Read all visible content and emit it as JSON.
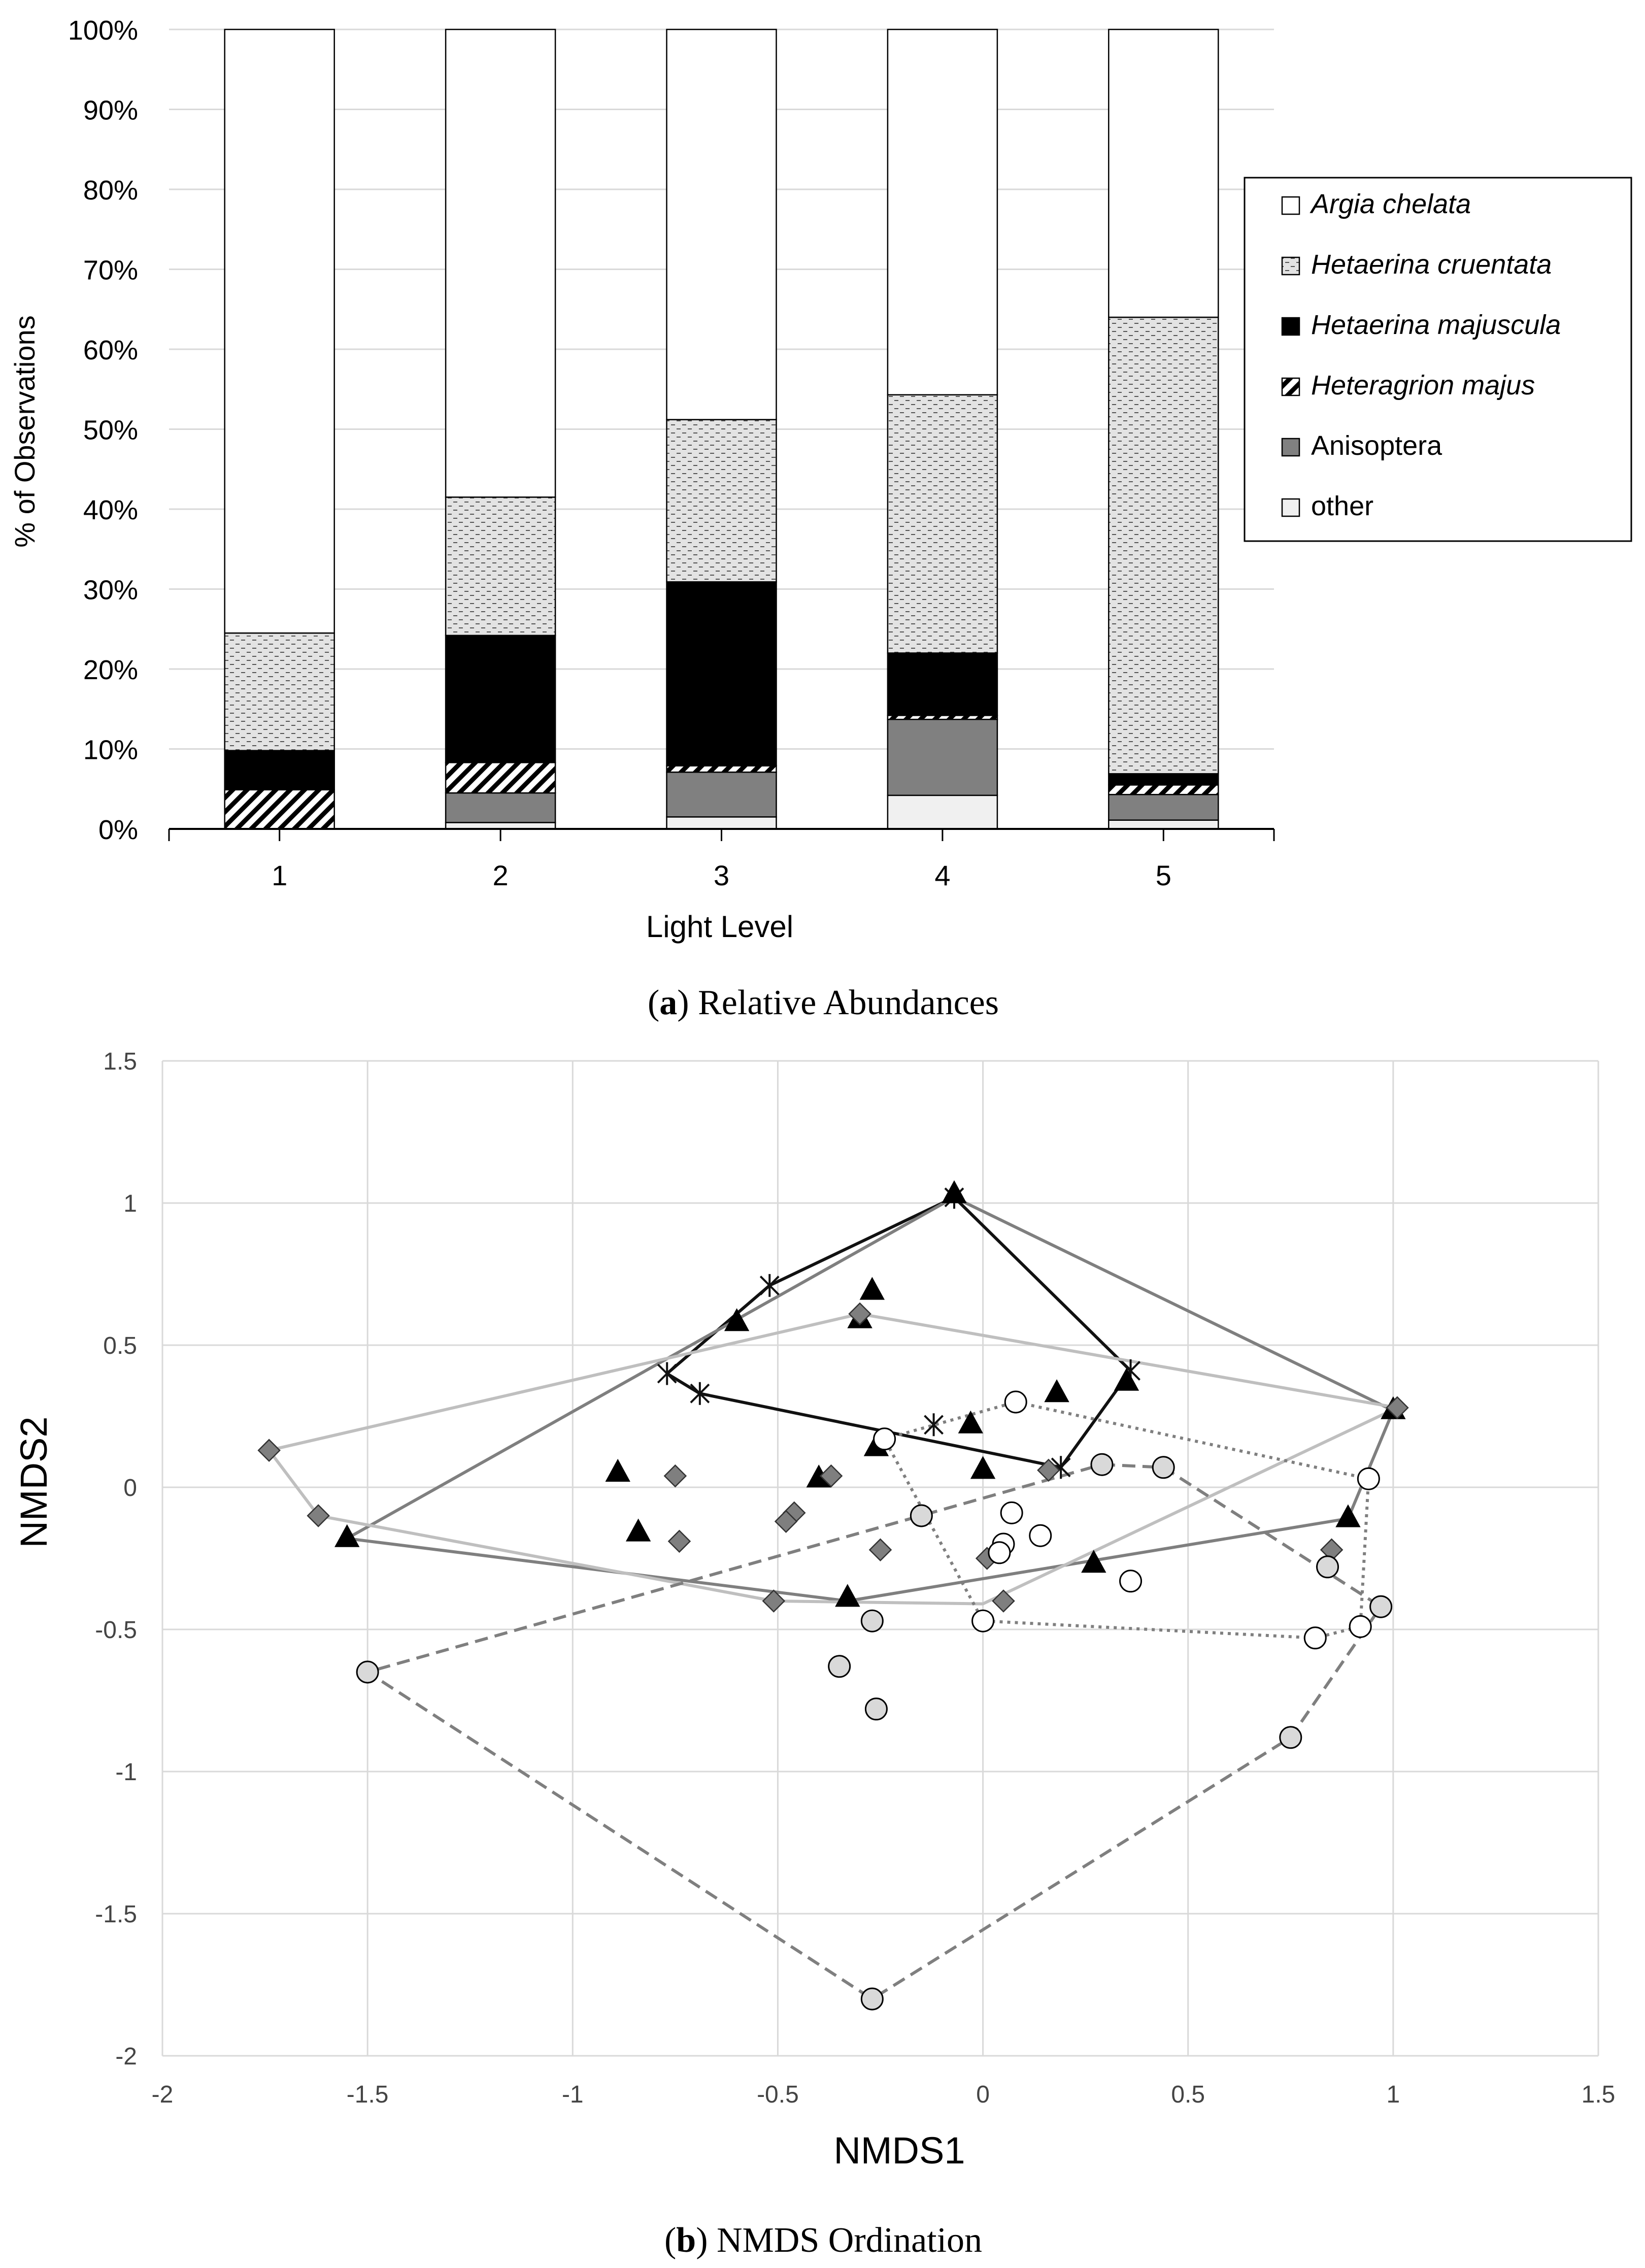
{
  "panel_a": {
    "caption_letter": "a",
    "caption_text": "Relative Abundances"
  },
  "panel_b": {
    "caption_letter": "b",
    "caption_text": "NMDS Ordination"
  },
  "chart_data": [
    {
      "type": "bar",
      "stacked": true,
      "percent": true,
      "xlabel": "Light Level",
      "ylabel": "% of Observations",
      "ylim": [
        0,
        100
      ],
      "yticks": [
        "0%",
        "10%",
        "20%",
        "30%",
        "40%",
        "50%",
        "60%",
        "70%",
        "80%",
        "90%",
        "100%"
      ],
      "categories": [
        "1",
        "2",
        "3",
        "4",
        "5"
      ],
      "grid": true,
      "legend_position": "right",
      "series": [
        {
          "name": "other",
          "pattern": "light-gray",
          "values": [
            0,
            0.8,
            1.5,
            4.2,
            1.1
          ]
        },
        {
          "name": "Anisoptera",
          "pattern": "gray",
          "values": [
            0,
            3.7,
            5.6,
            9.5,
            3.2
          ]
        },
        {
          "name": "Heteragrion majus",
          "pattern": "diagonal-hatch",
          "values": [
            4.9,
            3.8,
            0.8,
            0.5,
            1.2
          ]
        },
        {
          "name": "Hetaerina majuscula",
          "pattern": "black",
          "values": [
            4.9,
            15.9,
            23.0,
            7.8,
            1.4
          ]
        },
        {
          "name": "Hetaerina cruentata",
          "pattern": "dashed-stipple",
          "values": [
            14.7,
            17.3,
            20.3,
            32.3,
            57.1
          ]
        },
        {
          "name": "Argia chelata",
          "pattern": "white",
          "values": [
            75.5,
            58.5,
            48.8,
            45.7,
            36.0
          ]
        }
      ],
      "legend_order": [
        "Argia chelata",
        "Hetaerina cruentata",
        "Hetaerina majuscula",
        "Heteragrion majus",
        "Anisoptera",
        "other"
      ]
    },
    {
      "type": "scatter",
      "xlabel": "NMDS1",
      "ylabel": "NMDS2",
      "xlim": [
        -2,
        1.5
      ],
      "ylim": [
        -2,
        1.5
      ],
      "xticks": [
        "-2",
        "-1.5",
        "-1",
        "-0.5",
        "0",
        "0.5",
        "1",
        "1.5"
      ],
      "yticks": [
        "1.5",
        "1",
        "0.5",
        "0",
        "-0.5",
        "-1",
        "-1.5",
        "-2"
      ],
      "grid": true,
      "groups": [
        {
          "marker": "star",
          "color": "#111111",
          "hull_color": "#111111",
          "hull_style": "solid",
          "points": [
            [
              -0.07,
              1.02
            ],
            [
              -0.52,
              0.71
            ],
            [
              -0.77,
              0.4
            ],
            [
              -0.69,
              0.33
            ],
            [
              -0.12,
              0.22
            ],
            [
              0.36,
              0.41
            ],
            [
              0.19,
              0.07
            ]
          ],
          "hull": [
            [
              -0.07,
              1.02
            ],
            [
              0.36,
              0.41
            ],
            [
              0.19,
              0.07
            ],
            [
              -0.69,
              0.33
            ],
            [
              -0.77,
              0.4
            ],
            [
              -0.52,
              0.71
            ],
            [
              -0.07,
              1.02
            ]
          ]
        },
        {
          "marker": "triangle",
          "color": "#000000",
          "hull_color": "#7f7f7f",
          "hull_style": "solid",
          "points": [
            [
              -0.07,
              1.03
            ],
            [
              -0.27,
              0.69
            ],
            [
              -0.6,
              0.58
            ],
            [
              -0.3,
              0.59
            ],
            [
              0.35,
              0.37
            ],
            [
              0.18,
              0.33
            ],
            [
              -0.03,
              0.22
            ],
            [
              -0.89,
              0.05
            ],
            [
              -0.26,
              0.14
            ],
            [
              -0.4,
              0.03
            ],
            [
              0.0,
              0.06
            ],
            [
              -0.84,
              -0.16
            ],
            [
              -1.55,
              -0.18
            ],
            [
              0.27,
              -0.27
            ],
            [
              -0.33,
              -0.39
            ],
            [
              0.89,
              -0.11
            ],
            [
              1.0,
              0.27
            ]
          ],
          "hull": [
            [
              -0.07,
              1.02
            ],
            [
              1.0,
              0.27
            ],
            [
              0.89,
              -0.11
            ],
            [
              -0.33,
              -0.4
            ],
            [
              -1.55,
              -0.18
            ],
            [
              -0.07,
              1.02
            ]
          ]
        },
        {
          "marker": "diamond",
          "color": "#7f7f7f",
          "hull_color": "#bfbfbf",
          "hull_style": "solid",
          "points": [
            [
              -1.74,
              0.13
            ],
            [
              -1.62,
              -0.1
            ],
            [
              -0.3,
              0.61
            ],
            [
              1.01,
              0.28
            ],
            [
              -0.75,
              0.04
            ],
            [
              -0.74,
              -0.19
            ],
            [
              -0.46,
              -0.09
            ],
            [
              -0.48,
              -0.12
            ],
            [
              -0.37,
              0.04
            ],
            [
              -0.25,
              -0.22
            ],
            [
              0.01,
              -0.25
            ],
            [
              0.16,
              0.06
            ],
            [
              0.05,
              -0.4
            ],
            [
              -0.51,
              -0.4
            ],
            [
              0.85,
              -0.22
            ]
          ],
          "hull": [
            [
              -1.74,
              0.13
            ],
            [
              -0.3,
              0.61
            ],
            [
              1.01,
              0.28
            ],
            [
              0.0,
              -0.41
            ],
            [
              -0.51,
              -0.4
            ],
            [
              -1.62,
              -0.1
            ],
            [
              -1.74,
              0.13
            ]
          ]
        },
        {
          "marker": "circle",
          "color": "#ffffff",
          "hull_color": "#7f7f7f",
          "hull_style": "dotted",
          "points": [
            [
              -0.24,
              0.17
            ],
            [
              0.08,
              0.3
            ],
            [
              0.94,
              0.03
            ],
            [
              0.07,
              -0.09
            ],
            [
              0.05,
              -0.2
            ],
            [
              0.14,
              -0.17
            ],
            [
              0.04,
              -0.23
            ],
            [
              0.36,
              -0.33
            ],
            [
              0.0,
              -0.47
            ],
            [
              0.81,
              -0.53
            ],
            [
              0.92,
              -0.49
            ]
          ],
          "hull": [
            [
              -0.24,
              0.17
            ],
            [
              0.08,
              0.3
            ],
            [
              0.94,
              0.03
            ],
            [
              0.92,
              -0.49
            ],
            [
              0.81,
              -0.53
            ],
            [
              0.0,
              -0.47
            ],
            [
              -0.24,
              0.17
            ]
          ]
        },
        {
          "marker": "circle",
          "color": "#d9d9d9",
          "hull_color": "#7f7f7f",
          "hull_style": "dashed",
          "points": [
            [
              0.29,
              0.08
            ],
            [
              0.44,
              0.07
            ],
            [
              -0.15,
              -0.1
            ],
            [
              0.84,
              -0.28
            ],
            [
              0.97,
              -0.42
            ],
            [
              -0.27,
              -0.47
            ],
            [
              -0.35,
              -0.63
            ],
            [
              -0.26,
              -0.78
            ],
            [
              -1.5,
              -0.65
            ],
            [
              0.75,
              -0.88
            ],
            [
              -0.27,
              -1.8
            ]
          ],
          "hull": [
            [
              0.29,
              0.08
            ],
            [
              0.44,
              0.07
            ],
            [
              0.97,
              -0.42
            ],
            [
              0.75,
              -0.88
            ],
            [
              -0.27,
              -1.8
            ],
            [
              -1.5,
              -0.65
            ],
            [
              0.29,
              0.08
            ]
          ]
        }
      ]
    }
  ]
}
